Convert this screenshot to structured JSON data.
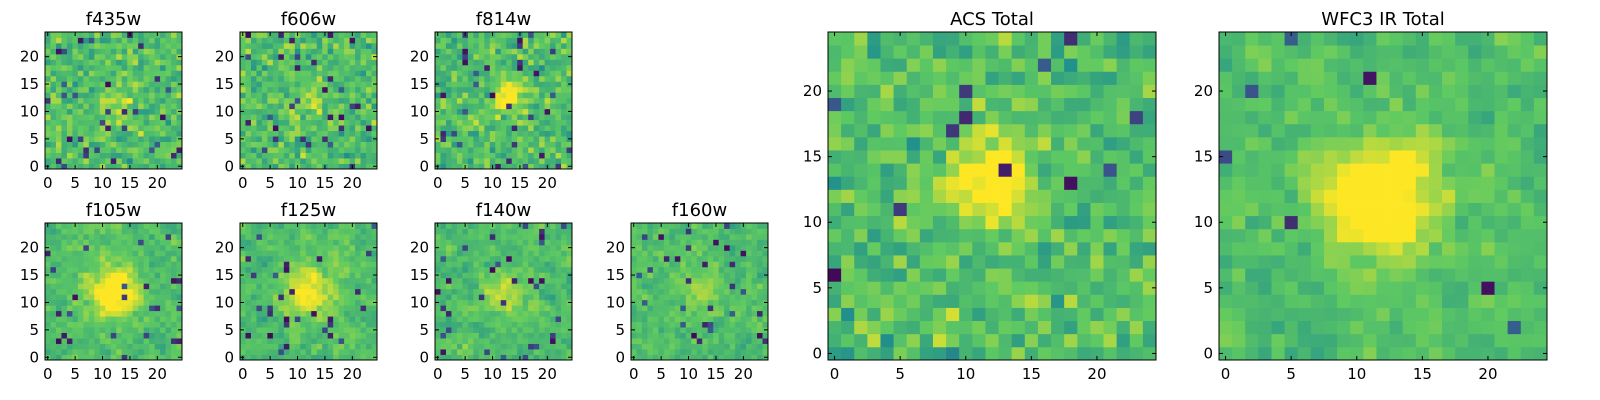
{
  "colormap": [
    "#440154",
    "#3b528b",
    "#21918c",
    "#5ec962",
    "#fde725"
  ],
  "chart_data": [
    {
      "type": "heatmap",
      "title": "f435w",
      "grid_size": 25,
      "xticks": [
        0,
        5,
        10,
        15,
        20
      ],
      "yticks": [
        0,
        5,
        10,
        15,
        20
      ],
      "xlim": [
        -0.5,
        24.5
      ],
      "ylim": [
        -0.5,
        24.5
      ],
      "seed": 11,
      "blob": {
        "center": [
          13,
          12
        ],
        "radius": 2.5,
        "strength": 0.15
      },
      "dark_fraction": 0.05,
      "smoothing": 0
    },
    {
      "type": "heatmap",
      "title": "f606w",
      "grid_size": 25,
      "xticks": [
        0,
        5,
        10,
        15,
        20
      ],
      "yticks": [
        0,
        5,
        10,
        15,
        20
      ],
      "xlim": [
        -0.5,
        24.5
      ],
      "ylim": [
        -0.5,
        24.5
      ],
      "seed": 23,
      "blob": {
        "center": [
          12,
          12
        ],
        "radius": 2.5,
        "strength": 0.12
      },
      "dark_fraction": 0.05,
      "smoothing": 0
    },
    {
      "type": "heatmap",
      "title": "f814w",
      "grid_size": 25,
      "xticks": [
        0,
        5,
        10,
        15,
        20
      ],
      "yticks": [
        0,
        5,
        10,
        15,
        20
      ],
      "xlim": [
        -0.5,
        24.5
      ],
      "ylim": [
        -0.5,
        24.5
      ],
      "seed": 37,
      "blob": {
        "center": [
          13,
          13
        ],
        "radius": 2.0,
        "strength": 0.35
      },
      "dark_fraction": 0.05,
      "smoothing": 0
    },
    {
      "type": "heatmap",
      "title": "f105w",
      "grid_size": 25,
      "xticks": [
        0,
        5,
        10,
        15,
        20
      ],
      "yticks": [
        0,
        5,
        10,
        15,
        20
      ],
      "xlim": [
        -0.5,
        24.5
      ],
      "ylim": [
        -0.5,
        24.5
      ],
      "seed": 41,
      "blob": {
        "center": [
          12,
          12
        ],
        "radius": 3.0,
        "strength": 0.45
      },
      "dark_fraction": 0.04,
      "smoothing": 1
    },
    {
      "type": "heatmap",
      "title": "f125w",
      "grid_size": 25,
      "xticks": [
        0,
        5,
        10,
        15,
        20
      ],
      "yticks": [
        0,
        5,
        10,
        15,
        20
      ],
      "xlim": [
        -0.5,
        24.5
      ],
      "ylim": [
        -0.5,
        24.5
      ],
      "seed": 53,
      "blob": {
        "center": [
          12,
          12
        ],
        "radius": 3.0,
        "strength": 0.35
      },
      "dark_fraction": 0.03,
      "smoothing": 1
    },
    {
      "type": "heatmap",
      "title": "f140w",
      "grid_size": 25,
      "xticks": [
        0,
        5,
        10,
        15,
        20
      ],
      "yticks": [
        0,
        5,
        10,
        15,
        20
      ],
      "xlim": [
        -0.5,
        24.5
      ],
      "ylim": [
        -0.5,
        24.5
      ],
      "seed": 67,
      "blob": {
        "center": [
          12,
          12
        ],
        "radius": 2.5,
        "strength": 0.25
      },
      "dark_fraction": 0.05,
      "smoothing": 1
    },
    {
      "type": "heatmap",
      "title": "f160w",
      "grid_size": 25,
      "xticks": [
        0,
        5,
        10,
        15,
        20
      ],
      "yticks": [
        0,
        5,
        10,
        15,
        20
      ],
      "xlim": [
        -0.5,
        24.5
      ],
      "ylim": [
        -0.5,
        24.5
      ],
      "seed": 79,
      "blob": {
        "center": [
          12,
          12
        ],
        "radius": 2.5,
        "strength": 0.15
      },
      "dark_fraction": 0.04,
      "smoothing": 1
    },
    {
      "type": "heatmap",
      "title": "ACS Total",
      "grid_size": 25,
      "xticks": [
        0,
        5,
        10,
        15,
        20
      ],
      "yticks": [
        0,
        5,
        10,
        15,
        20
      ],
      "xlim": [
        -0.5,
        24.5
      ],
      "ylim": [
        -0.5,
        24.5
      ],
      "seed": 97,
      "blob": {
        "center": [
          12,
          13
        ],
        "radius": 2.0,
        "strength": 0.5
      },
      "dark_fraction": 0.025,
      "smoothing": 0
    },
    {
      "type": "heatmap",
      "title": "WFC3 IR Total",
      "grid_size": 25,
      "xticks": [
        0,
        5,
        10,
        15,
        20
      ],
      "yticks": [
        0,
        5,
        10,
        15,
        20
      ],
      "xlim": [
        -0.5,
        24.5
      ],
      "ylim": [
        -0.5,
        24.5
      ],
      "seed": 113,
      "blob": {
        "center": [
          12,
          12
        ],
        "radius": 3.0,
        "strength": 0.5
      },
      "dark_fraction": 0.02,
      "smoothing": 1
    }
  ]
}
